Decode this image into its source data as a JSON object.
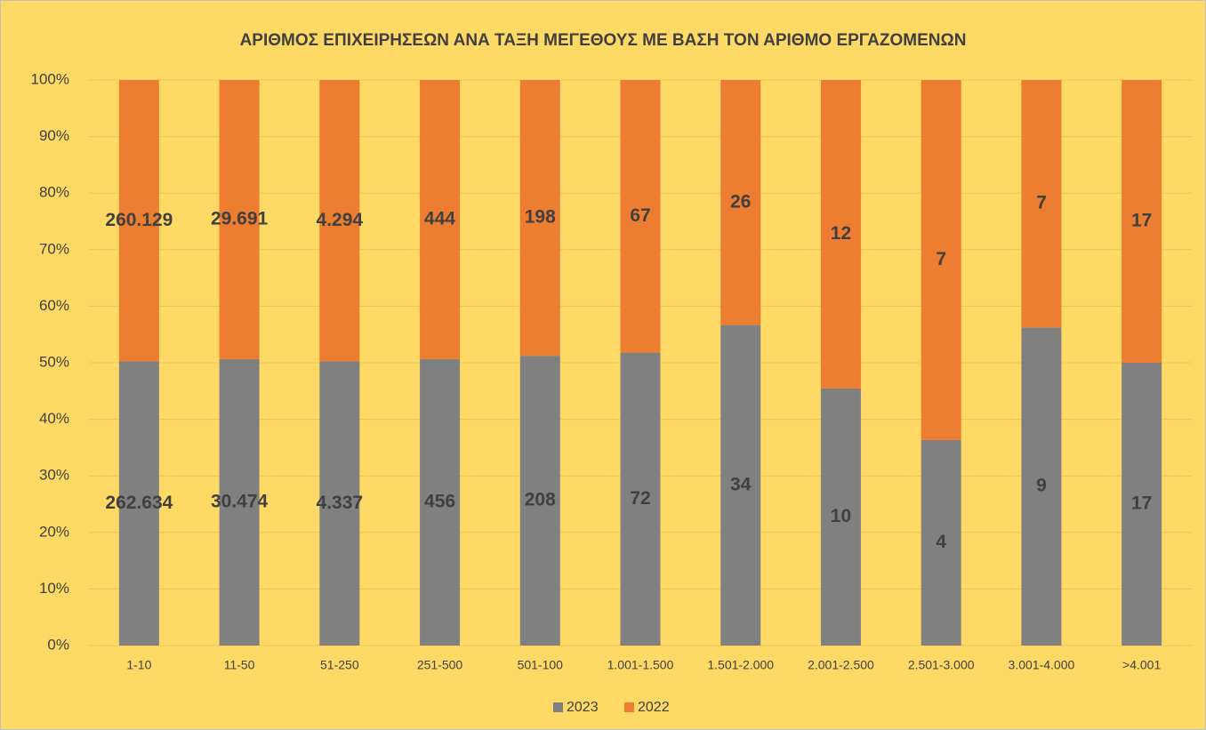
{
  "chart_data": {
    "type": "bar",
    "stacking": "percent",
    "title": "ΑΡΙΘΜΟΣ ΕΠΙΧΕΙΡΗΣΕΩΝ ΑΝΑ ΤΑΞΗ ΜΕΓΕΘΟΥΣ ΜΕ ΒΑΣΗ ΤΟΝ ΑΡΙΘΜΟ ΕΡΓΑΖΟΜΕΝΩΝ",
    "categories": [
      "1-10",
      "11-50",
      "51-250",
      "251-500",
      "501-100",
      "1.001-1.500",
      "1.501-2.000",
      "2.001-2.500",
      "2.501-3.000",
      "3.001-4.000",
      ">4.001"
    ],
    "series": [
      {
        "name": "2023",
        "color": "#808080",
        "values": [
          262634,
          30474,
          4337,
          456,
          208,
          72,
          34,
          10,
          4,
          9,
          17
        ],
        "value_labels": [
          "262.634",
          "30.474",
          "4.337",
          "456",
          "208",
          "72",
          "34",
          "10",
          "4",
          "9",
          "17"
        ]
      },
      {
        "name": "2022",
        "color": "#ED7D31",
        "values": [
          260129,
          29691,
          4294,
          444,
          198,
          67,
          26,
          12,
          7,
          7,
          17
        ],
        "value_labels": [
          "260.129",
          "29.691",
          "4.294",
          "444",
          "198",
          "67",
          "26",
          "12",
          "7",
          "7",
          "17"
        ]
      }
    ],
    "ylim": [
      0,
      100
    ],
    "yticks": [
      {
        "value": 0,
        "label": "0%"
      },
      {
        "value": 10,
        "label": "10%"
      },
      {
        "value": 20,
        "label": "20%"
      },
      {
        "value": 30,
        "label": "30%"
      },
      {
        "value": 40,
        "label": "40%"
      },
      {
        "value": 50,
        "label": "50%"
      },
      {
        "value": 60,
        "label": "60%"
      },
      {
        "value": 70,
        "label": "70%"
      },
      {
        "value": 80,
        "label": "80%"
      },
      {
        "value": 90,
        "label": "90%"
      },
      {
        "value": 100,
        "label": "100%"
      }
    ],
    "grid": true,
    "legend": "bottom"
  }
}
